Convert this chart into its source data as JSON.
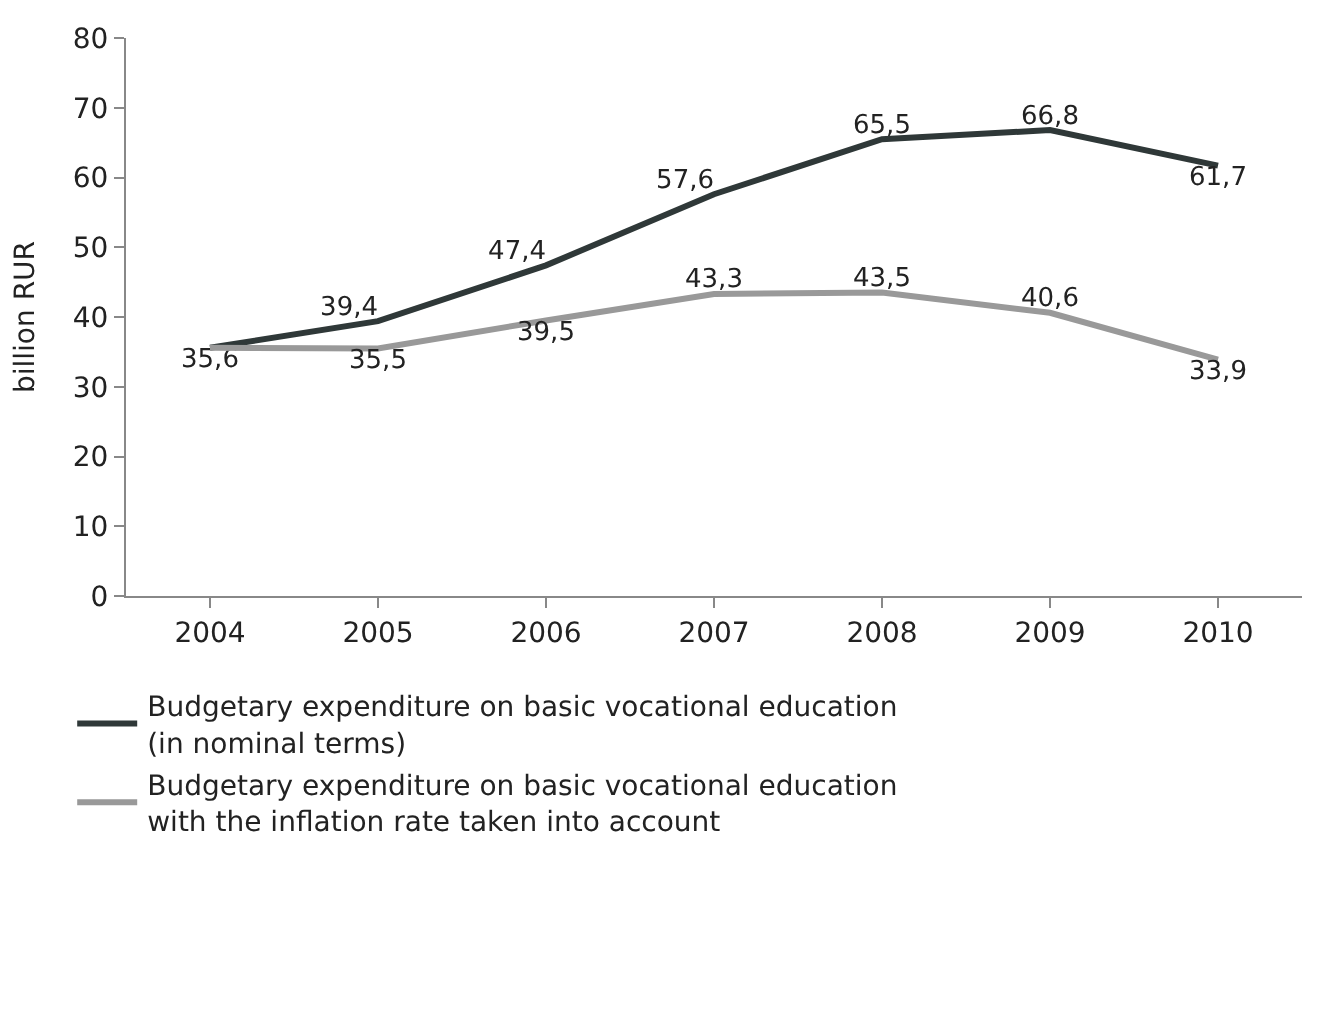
{
  "chart_data": {
    "type": "line",
    "ylabel": "billion RUR",
    "categories": [
      "2004",
      "2005",
      "2006",
      "2007",
      "2008",
      "2009",
      "2010"
    ],
    "series": [
      {
        "name": "Budgetary expenditure on basic vocational education (in nominal terms)",
        "color": "#2f3838",
        "values": [
          35.6,
          39.4,
          47.4,
          57.6,
          65.5,
          66.8,
          61.7
        ],
        "value_labels": [
          "35,6",
          "39,4",
          "47,4",
          "57,6",
          "65,5",
          "66,8",
          "61,7"
        ]
      },
      {
        "name": "Budgetary expenditure on basic vocational education with the inflation rate taken into account",
        "color": "#999999",
        "values": [
          35.6,
          35.5,
          39.5,
          43.3,
          43.5,
          40.6,
          33.9
        ],
        "value_labels": [
          null,
          "35,5",
          "39,5",
          "43,3",
          "43,5",
          "40,6",
          "33,9"
        ]
      }
    ],
    "ylim": [
      0,
      80
    ],
    "yticks": [
      0,
      10,
      20,
      30,
      40,
      50,
      60,
      70,
      80
    ],
    "legend": "bottom",
    "marker": "none",
    "line_style": "solid"
  }
}
